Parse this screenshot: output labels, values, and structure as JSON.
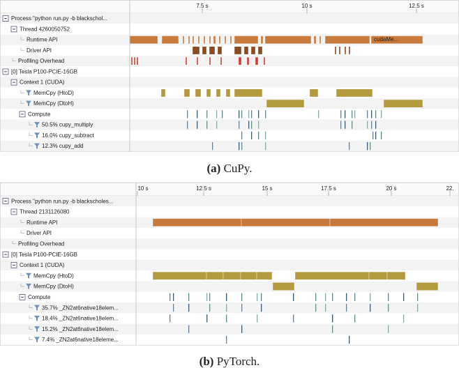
{
  "panels": [
    {
      "ticks": [
        "7.5 s",
        "10 s",
        "12.5 s"
      ],
      "rows": [
        "Process \"python run.py -b blackschol...",
        "Thread 4260050752",
        "Runtime API",
        "Driver API",
        "Profiling Overhead",
        "[0] Tesla P100-PCIE-16GB",
        "Context 1 (CUDA)",
        "MemCpy (HtoD)",
        "MemCpy (DtoH)",
        "Compute",
        "50.5% cupy_multiply",
        "16.0% cupy_subtract",
        "12.3% cupy_add"
      ],
      "bar_label": "cudaMe...",
      "caption": {
        "label": "(a)",
        "text": "CuPy."
      }
    },
    {
      "ticks": [
        "10 s",
        "12.5 s",
        "15 s",
        "17.5 s",
        "20 s",
        "22."
      ],
      "rows": [
        "Process \"python run.py -b blackscholes...",
        "Thread 2131126080",
        "Runtime API",
        "Driver API",
        "Profiling Overhead",
        "[0] Tesla P100-PCIE-16GB",
        "Context 1 (CUDA)",
        "MemCpy (HtoD)",
        "MemCpy (DtoH)",
        "Compute",
        "35.7% _ZN2at6native18elem...",
        "18.4% _ZN2at6native18elem...",
        "15.2% _ZN2at6native18elem...",
        "7.4% _ZN2at6native18eleme..."
      ],
      "caption": {
        "label": "(b)",
        "text": "PyTorch."
      }
    }
  ]
}
